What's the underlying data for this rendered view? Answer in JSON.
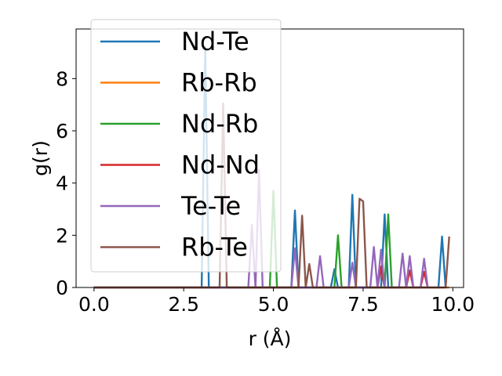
{
  "chart_data": {
    "type": "line",
    "title": "",
    "xlabel": "r (Å)",
    "ylabel": "g(r)",
    "xlim": [
      -0.5,
      10.3
    ],
    "ylim": [
      0,
      9.9
    ],
    "xticks": [
      0.0,
      2.5,
      5.0,
      7.5,
      10.0
    ],
    "xtick_labels": [
      "0.0",
      "2.5",
      "5.0",
      "7.5",
      "10.0"
    ],
    "yticks": [
      0,
      2,
      4,
      6,
      8
    ],
    "ytick_labels": [
      "0",
      "2",
      "4",
      "6",
      "8"
    ],
    "grid": false,
    "legend_position": "top-left",
    "series": [
      {
        "name": "Nd-Te",
        "color": "#1f77b4",
        "x": [
          0,
          3.0,
          3.1,
          3.2,
          3.3,
          5.5,
          5.6,
          5.7,
          6.6,
          6.7,
          6.8,
          7.1,
          7.2,
          7.3,
          8.0,
          8.1,
          8.2,
          9.6,
          9.7,
          9.8
        ],
        "y": [
          0,
          0,
          9.2,
          0,
          0,
          0,
          2.95,
          0,
          0,
          0.7,
          0,
          0,
          3.55,
          0,
          0,
          2.8,
          0,
          0,
          1.95,
          0
        ]
      },
      {
        "name": "Rb-Rb",
        "color": "#ff7f0e",
        "x": [
          0,
          9.9
        ],
        "y": [
          0,
          0
        ]
      },
      {
        "name": "Nd-Rb",
        "color": "#2ca02c",
        "x": [
          0,
          4.9,
          5.0,
          5.1,
          6.7,
          6.8,
          6.9,
          8.1,
          8.2,
          8.3
        ],
        "y": [
          0,
          0,
          3.7,
          0,
          0,
          2.0,
          0,
          0,
          2.8,
          0
        ]
      },
      {
        "name": "Nd-Nd",
        "color": "#d62728",
        "x": [
          0,
          7.9,
          8.0,
          8.1,
          8.7,
          8.8,
          8.9,
          9.1,
          9.2,
          9.3
        ],
        "y": [
          0,
          0,
          0.8,
          0,
          0,
          0.65,
          0,
          0,
          0.6,
          0
        ]
      },
      {
        "name": "Te-Te",
        "color": "#9467bd",
        "x": [
          0,
          4.3,
          4.4,
          4.5,
          4.6,
          4.7,
          5.5,
          5.6,
          5.7,
          6.2,
          6.3,
          6.4,
          7.1,
          7.2,
          7.3,
          7.7,
          7.8,
          7.9,
          8.0,
          8.1,
          8.5,
          8.6,
          8.7,
          8.8,
          8.9,
          9.1,
          9.2,
          9.3
        ],
        "y": [
          0,
          0,
          2.4,
          0,
          4.5,
          0,
          0,
          1.5,
          0,
          0,
          1.2,
          0,
          0,
          0.95,
          0,
          0,
          1.55,
          0,
          1.45,
          0,
          0,
          1.3,
          0,
          1.2,
          0,
          0,
          1.1,
          0
        ]
      },
      {
        "name": "Rb-Te",
        "color": "#8c564b",
        "x": [
          0,
          3.5,
          3.6,
          3.7,
          5.7,
          5.8,
          5.9,
          6.0,
          6.1,
          7.3,
          7.4,
          7.5,
          7.6,
          9.7,
          9.8,
          9.9
        ],
        "y": [
          0,
          0,
          7.05,
          0,
          0,
          2.75,
          0,
          0.9,
          0,
          0,
          3.4,
          3.3,
          0,
          0,
          0,
          1.95
        ]
      }
    ]
  }
}
